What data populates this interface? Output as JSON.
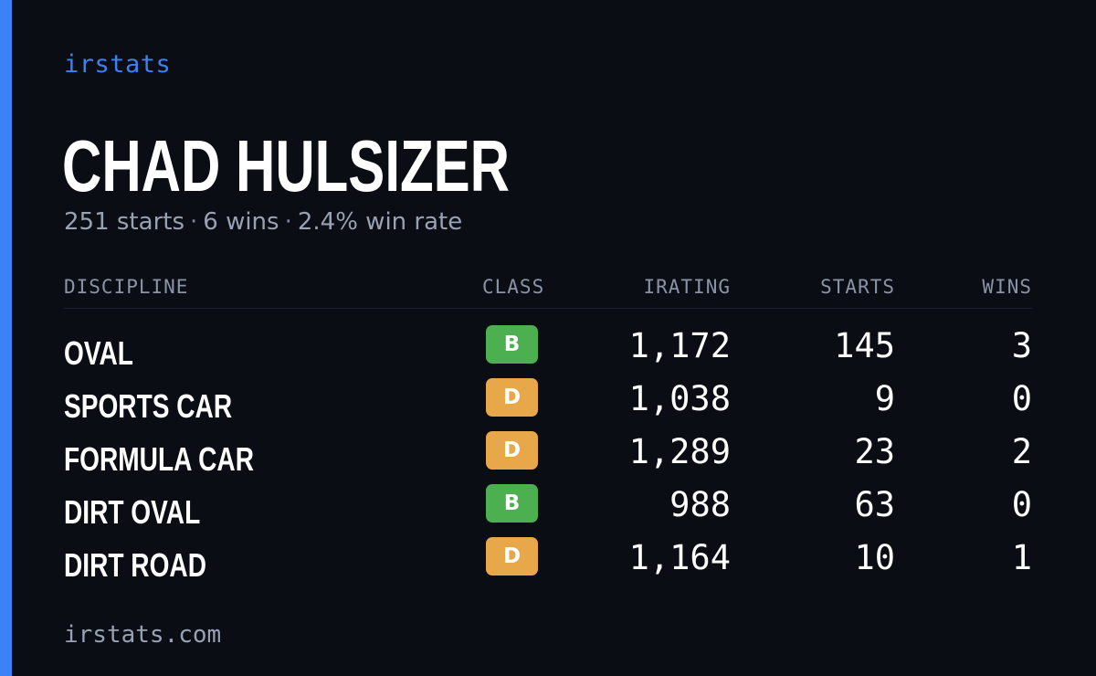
{
  "brand": "irstats",
  "driver": {
    "name": "CHAD HULSIZER",
    "starts_text": "251 starts",
    "wins_text": "6 wins",
    "win_rate_text": "2.4% win rate",
    "separator": "·"
  },
  "table": {
    "headers": {
      "discipline": "DISCIPLINE",
      "class": "CLASS",
      "irating": "IRATING",
      "starts": "STARTS",
      "wins": "WINS"
    },
    "rows": [
      {
        "discipline": "OVAL",
        "class": "B",
        "irating": "1,172",
        "starts": "145",
        "wins": "3"
      },
      {
        "discipline": "SPORTS CAR",
        "class": "D",
        "irating": "1,038",
        "starts": "9",
        "wins": "0"
      },
      {
        "discipline": "FORMULA CAR",
        "class": "D",
        "irating": "1,289",
        "starts": "23",
        "wins": "2"
      },
      {
        "discipline": "DIRT OVAL",
        "class": "B",
        "irating": "988",
        "starts": "63",
        "wins": "0"
      },
      {
        "discipline": "DIRT ROAD",
        "class": "D",
        "irating": "1,164",
        "starts": "10",
        "wins": "1"
      }
    ]
  },
  "footer": "irstats.com",
  "colors": {
    "background": "#0a0d14",
    "accent": "#3b82f6",
    "class_b": "#4caf50",
    "class_d": "#e8a84a",
    "muted_text": "#98a2b3"
  }
}
